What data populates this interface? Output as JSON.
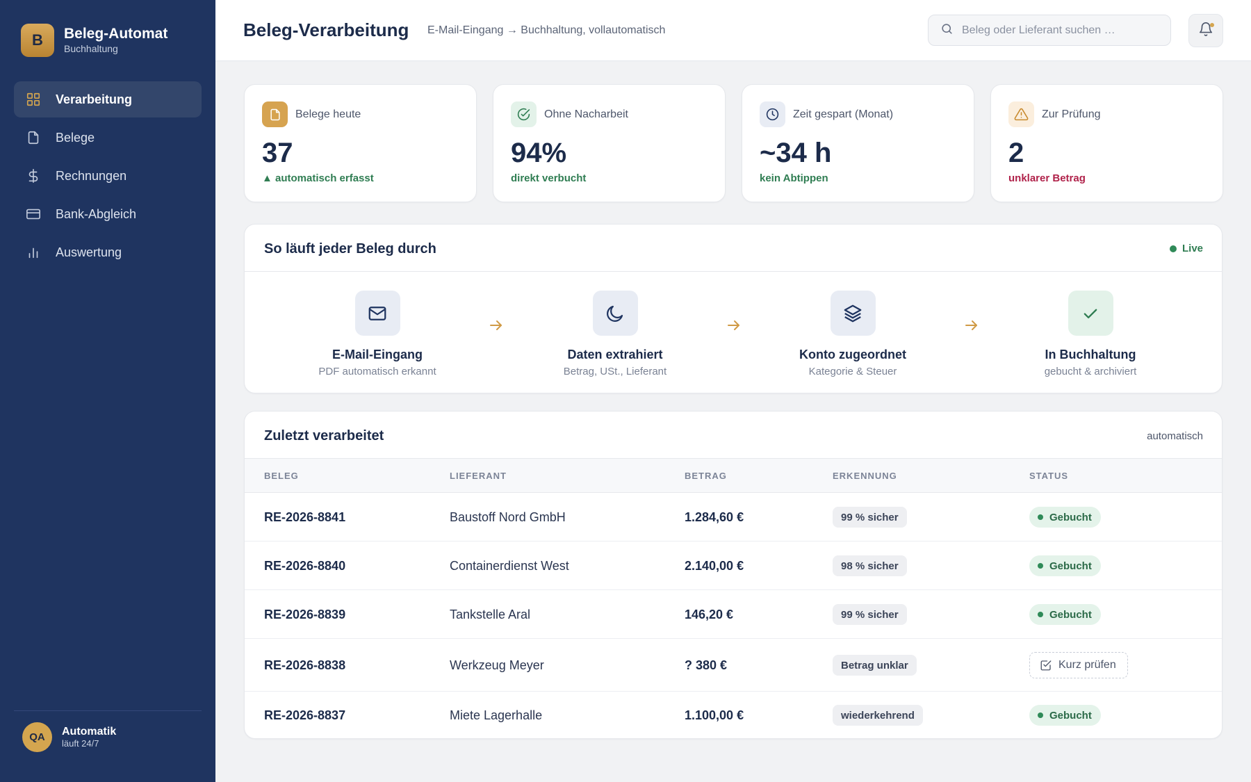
{
  "brand": {
    "logo_letter": "B",
    "title": "Beleg-Automat",
    "subtitle": "Buchhaltung"
  },
  "sidebar": {
    "items": [
      {
        "label": "Verarbeitung",
        "icon": "grid-icon",
        "active": true
      },
      {
        "label": "Belege",
        "icon": "document-icon",
        "active": false
      },
      {
        "label": "Rechnungen",
        "icon": "dollar-icon",
        "active": false
      },
      {
        "label": "Bank-Abgleich",
        "icon": "credit-card-icon",
        "active": false
      },
      {
        "label": "Auswertung",
        "icon": "bar-chart-icon",
        "active": false
      }
    ],
    "footer": {
      "initials": "QA",
      "name": "Automatik",
      "status": "läuft 24/7"
    }
  },
  "header": {
    "title": "Beleg-Verarbeitung",
    "subtitle": "E-Mail-Eingang → Buchhaltung, vollautomatisch",
    "search_placeholder": "Beleg oder Lieferant suchen …"
  },
  "stats": [
    {
      "label": "Belege heute",
      "value": "37",
      "note": "▲ automatisch erfasst",
      "note_color": "#2f7d52",
      "icon": "document-icon"
    },
    {
      "label": "Ohne Nacharbeit",
      "value": "94%",
      "note": "direkt verbucht",
      "note_color": "#2f7d52",
      "icon": "check-circle-icon"
    },
    {
      "label": "Zeit gespart (Monat)",
      "value": "~34 h",
      "note": "kein Abtippen",
      "note_color": "#2f7d52",
      "icon": "clock-icon"
    },
    {
      "label": "Zur Prüfung",
      "value": "2",
      "note": "unklarer Betrag",
      "note_color": "#b0224a",
      "icon": "warning-icon"
    }
  ],
  "flow": {
    "title": "So läuft jeder Beleg durch",
    "live_label": "Live",
    "steps": [
      {
        "title": "E-Mail-Eingang",
        "subtitle": "PDF automatisch erkannt",
        "icon": "mail-icon"
      },
      {
        "title": "Daten extrahiert",
        "subtitle": "Betrag, USt., Lieferant",
        "icon": "moon-icon"
      },
      {
        "title": "Konto zugeordnet",
        "subtitle": "Kategorie & Steuer",
        "icon": "layers-icon"
      },
      {
        "title": "In Buchhaltung",
        "subtitle": "gebucht & archiviert",
        "icon": "check-icon"
      }
    ]
  },
  "table": {
    "title": "Zuletzt verarbeitet",
    "meta": "automatisch",
    "columns": [
      "BELEG",
      "LIEFERANT",
      "BETRAG",
      "ERKENNUNG",
      "STATUS"
    ],
    "rows": [
      {
        "id": "RE-2026-8841",
        "supplier": "Baustoff Nord GmbH",
        "amount": "1.284,60 €",
        "recognition": "99 % sicher",
        "status": "Gebucht",
        "action": false
      },
      {
        "id": "RE-2026-8840",
        "supplier": "Containerdienst West",
        "amount": "2.140,00 €",
        "recognition": "98 % sicher",
        "status": "Gebucht",
        "action": false
      },
      {
        "id": "RE-2026-8839",
        "supplier": "Tankstelle Aral",
        "amount": "146,20 €",
        "recognition": "99 % sicher",
        "status": "Gebucht",
        "action": false
      },
      {
        "id": "RE-2026-8838",
        "supplier": "Werkzeug Meyer",
        "amount": "? 380 €",
        "recognition": "Betrag unklar",
        "status": "Kurz prüfen",
        "action": true
      },
      {
        "id": "RE-2026-8837",
        "supplier": "Miete Lagerhalle",
        "amount": "1.100,00 €",
        "recognition": "wiederkehrend",
        "status": "Gebucht",
        "action": false
      }
    ]
  },
  "colors": {
    "sidebar": "#1f3460",
    "accent": "#d4a54f",
    "success": "#2f7d52",
    "danger": "#b0224a"
  }
}
